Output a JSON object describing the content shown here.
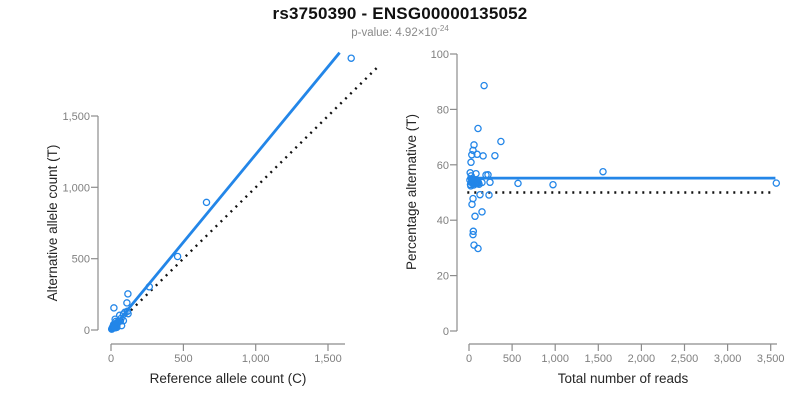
{
  "header": {
    "title": "rs3750390 - ENSG00000135052",
    "subtitle_text": "p-value: 4.92×10",
    "subtitle_exponent": "-24"
  },
  "colors": {
    "accent_blue": "#2386E8",
    "dotted_black": "#111111",
    "axis_gray": "#8c8c8c",
    "tick_label_gray": "#7f7f7f",
    "axis_title_dark": "#262626"
  },
  "chart_data": [
    {
      "type": "scatter",
      "title": "",
      "xlabel": "Reference allele count (C)",
      "ylabel": "Alternative allele count (T)",
      "xlim": [
        0,
        1620
      ],
      "ylim": [
        0,
        1960
      ],
      "xticks": [
        0,
        500,
        1000,
        1500
      ],
      "yticks": [
        0,
        500,
        1000,
        1500
      ],
      "grid": false,
      "legend": "none",
      "points": [
        [
          5,
          6
        ],
        [
          6,
          8
        ],
        [
          8,
          9
        ],
        [
          9,
          14
        ],
        [
          10,
          11
        ],
        [
          11,
          14
        ],
        [
          12,
          21
        ],
        [
          13,
          15
        ],
        [
          14,
          17
        ],
        [
          15,
          18
        ],
        [
          16,
          30
        ],
        [
          17,
          20
        ],
        [
          18,
          21
        ],
        [
          19,
          16
        ],
        [
          19,
          39
        ],
        [
          20,
          23
        ],
        [
          21,
          24
        ],
        [
          22,
          26
        ],
        [
          24,
          22
        ],
        [
          25,
          30
        ],
        [
          26,
          29
        ],
        [
          28,
          33
        ],
        [
          30,
          16
        ],
        [
          31,
          36
        ],
        [
          32,
          18
        ],
        [
          34,
          60
        ],
        [
          35,
          46
        ],
        [
          36,
          41
        ],
        [
          38,
          44
        ],
        [
          40,
          18
        ],
        [
          41,
          29
        ],
        [
          44,
          50
        ],
        [
          45,
          52
        ],
        [
          48,
          55
        ],
        [
          50,
          58
        ],
        [
          55,
          62
        ],
        [
          60,
          103
        ],
        [
          65,
          63
        ],
        [
          70,
          81
        ],
        [
          73,
          31
        ],
        [
          86,
          65
        ],
        [
          86,
          111
        ],
        [
          96,
          124
        ],
        [
          110,
          190
        ],
        [
          113,
          131
        ],
        [
          118,
          114
        ],
        [
          20,
          155
        ],
        [
          28,
          76
        ],
        [
          117,
          253
        ],
        [
          265,
          303
        ],
        [
          460,
          515
        ],
        [
          660,
          894
        ],
        [
          1660,
          1905
        ]
      ],
      "lines": [
        {
          "name": "fit-line",
          "style": "solid",
          "slope": 1.23,
          "intercept": 0,
          "x1": 0,
          "x2": 1580
        },
        {
          "name": "identity-line",
          "style": "dotted",
          "slope": 1,
          "intercept": 0,
          "x1": 0,
          "x2": 1850
        }
      ]
    },
    {
      "type": "scatter",
      "title": "",
      "xlabel": "Total number of reads",
      "ylabel": "Percentage alternative (T)",
      "xlim": [
        0,
        3570
      ],
      "ylim": [
        0,
        100
      ],
      "xticks": [
        0,
        500,
        1000,
        1500,
        2000,
        2500,
        3000,
        3500
      ],
      "yticks": [
        0,
        20,
        40,
        60,
        80,
        100
      ],
      "grid": false,
      "legend": "none",
      "points": [
        [
          11,
          54.5
        ],
        [
          14,
          57.1
        ],
        [
          17,
          52.9
        ],
        [
          23,
          60.9
        ],
        [
          21,
          52.4
        ],
        [
          25,
          56.0
        ],
        [
          33,
          63.6
        ],
        [
          28,
          53.6
        ],
        [
          31,
          54.8
        ],
        [
          33,
          54.5
        ],
        [
          46,
          65.2
        ],
        [
          37,
          54.1
        ],
        [
          39,
          53.8
        ],
        [
          35,
          45.7
        ],
        [
          58,
          67.2
        ],
        [
          43,
          53.5
        ],
        [
          45,
          53.3
        ],
        [
          48,
          54.2
        ],
        [
          46,
          47.8
        ],
        [
          55,
          54.5
        ],
        [
          55,
          52.7
        ],
        [
          61,
          54.1
        ],
        [
          46,
          34.8
        ],
        [
          67,
          53.7
        ],
        [
          50,
          36.0
        ],
        [
          94,
          63.8
        ],
        [
          81,
          56.8
        ],
        [
          77,
          53.2
        ],
        [
          82,
          53.7
        ],
        [
          58,
          31.0
        ],
        [
          70,
          41.4
        ],
        [
          94,
          53.2
        ],
        [
          97,
          53.6
        ],
        [
          103,
          53.4
        ],
        [
          108,
          53.7
        ],
        [
          117,
          53.0
        ],
        [
          163,
          63.2
        ],
        [
          128,
          49.2
        ],
        [
          151,
          53.6
        ],
        [
          104,
          29.8
        ],
        [
          151,
          43.0
        ],
        [
          197,
          56.3
        ],
        [
          220,
          56.4
        ],
        [
          300,
          63.3
        ],
        [
          244,
          53.7
        ],
        [
          232,
          49.1
        ],
        [
          175,
          88.6
        ],
        [
          104,
          73.1
        ],
        [
          370,
          68.4
        ],
        [
          568,
          53.3
        ],
        [
          975,
          52.8
        ],
        [
          1554,
          57.5
        ],
        [
          3565,
          53.4
        ]
      ],
      "lines": [
        {
          "name": "fit-line",
          "style": "solid",
          "slope": 0,
          "intercept": 55.2,
          "x1": -20,
          "x2": 3555
        },
        {
          "name": "null-line",
          "style": "dotted",
          "slope": 0,
          "intercept": 50,
          "x1": -20,
          "x2": 3520
        }
      ]
    }
  ]
}
